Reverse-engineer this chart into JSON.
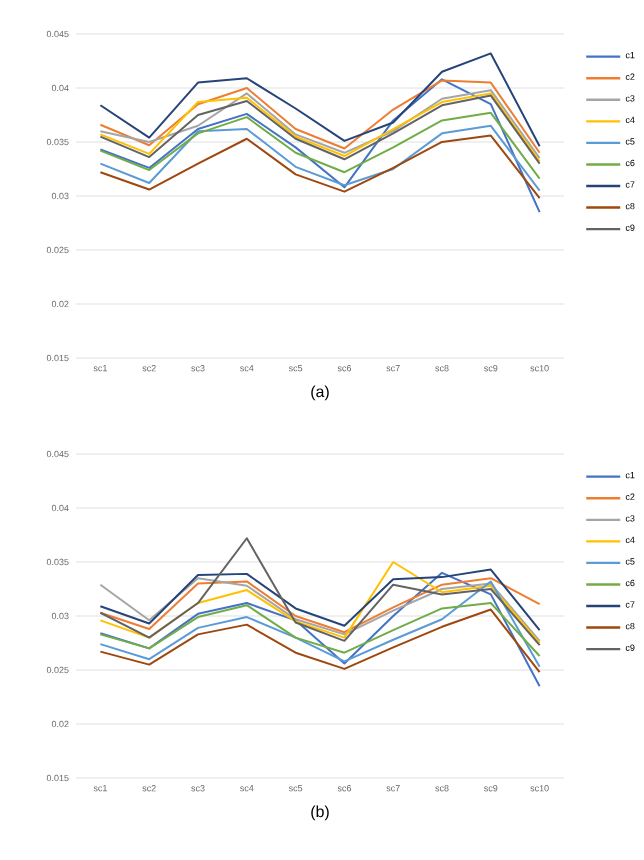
{
  "chart_data": [
    {
      "type": "line",
      "title": "(a)",
      "categories": [
        "sc1",
        "sc2",
        "sc3",
        "sc4",
        "sc5",
        "sc6",
        "sc7",
        "sc8",
        "sc9",
        "sc10"
      ],
      "ylim": [
        0.015,
        0.045
      ],
      "yticks": [
        0.015,
        0.02,
        0.025,
        0.03,
        0.035,
        0.04,
        0.045
      ],
      "grid": "y",
      "legend": "right",
      "marker": "none",
      "line_style": "solid",
      "series": [
        {
          "name": "c1",
          "color": "#4472c4",
          "values": [
            0.0343,
            0.0326,
            0.0362,
            0.0376,
            0.0345,
            0.0308,
            0.037,
            0.0408,
            0.0385,
            0.0285
          ]
        },
        {
          "name": "c2",
          "color": "#ed7d31",
          "values": [
            0.0366,
            0.0347,
            0.0385,
            0.04,
            0.0362,
            0.0344,
            0.038,
            0.0407,
            0.0405,
            0.034
          ]
        },
        {
          "name": "c3",
          "color": "#a5a5a5",
          "values": [
            0.036,
            0.035,
            0.0365,
            0.0395,
            0.0357,
            0.034,
            0.036,
            0.039,
            0.0398,
            0.0335
          ]
        },
        {
          "name": "c4",
          "color": "#ffc000",
          "values": [
            0.0357,
            0.0339,
            0.0387,
            0.0391,
            0.0355,
            0.0337,
            0.0362,
            0.0387,
            0.0395,
            0.0332
          ]
        },
        {
          "name": "c5",
          "color": "#5b9bd5",
          "values": [
            0.033,
            0.0312,
            0.036,
            0.0362,
            0.0327,
            0.031,
            0.0325,
            0.0358,
            0.0365,
            0.0305
          ]
        },
        {
          "name": "c6",
          "color": "#70ad47",
          "values": [
            0.0342,
            0.0324,
            0.0358,
            0.0373,
            0.034,
            0.0322,
            0.0345,
            0.037,
            0.0377,
            0.0316
          ]
        },
        {
          "name": "c7",
          "color": "#264478",
          "values": [
            0.0384,
            0.0354,
            0.0405,
            0.0409,
            0.0381,
            0.0351,
            0.0368,
            0.0415,
            0.0432,
            0.0346
          ]
        },
        {
          "name": "c8",
          "color": "#9e480e",
          "values": [
            0.0322,
            0.0306,
            0.033,
            0.0353,
            0.032,
            0.0304,
            0.0326,
            0.035,
            0.0356,
            0.0298
          ]
        },
        {
          "name": "c9",
          "color": "#636363",
          "values": [
            0.0355,
            0.0336,
            0.0375,
            0.0388,
            0.0353,
            0.0334,
            0.0358,
            0.0384,
            0.0393,
            0.033
          ]
        }
      ]
    },
    {
      "type": "line",
      "title": "(b)",
      "categories": [
        "sc1",
        "sc2",
        "sc3",
        "sc4",
        "sc5",
        "sc6",
        "sc7",
        "sc8",
        "sc9",
        "sc10"
      ],
      "ylim": [
        0.015,
        0.045
      ],
      "yticks": [
        0.015,
        0.02,
        0.025,
        0.03,
        0.035,
        0.04,
        0.045
      ],
      "grid": "y",
      "legend": "right",
      "marker": "none",
      "line_style": "solid",
      "series": [
        {
          "name": "c1",
          "color": "#4472c4",
          "values": [
            0.0284,
            0.027,
            0.0302,
            0.0312,
            0.0296,
            0.0256,
            0.03,
            0.034,
            0.032,
            0.0235
          ]
        },
        {
          "name": "c2",
          "color": "#ed7d31",
          "values": [
            0.0303,
            0.0288,
            0.033,
            0.0332,
            0.03,
            0.0285,
            0.0308,
            0.0329,
            0.0335,
            0.0311
          ]
        },
        {
          "name": "c3",
          "color": "#a5a5a5",
          "values": [
            0.0329,
            0.0296,
            0.0335,
            0.0328,
            0.0297,
            0.0283,
            0.0305,
            0.0325,
            0.033,
            0.0277
          ]
        },
        {
          "name": "c4",
          "color": "#ffc000",
          "values": [
            0.0296,
            0.028,
            0.0312,
            0.0324,
            0.0295,
            0.028,
            0.035,
            0.0322,
            0.0328,
            0.0275
          ]
        },
        {
          "name": "c5",
          "color": "#5b9bd5",
          "values": [
            0.0274,
            0.026,
            0.0289,
            0.0299,
            0.028,
            0.0258,
            0.0278,
            0.0297,
            0.0332,
            0.0253
          ]
        },
        {
          "name": "c6",
          "color": "#70ad47",
          "values": [
            0.0283,
            0.027,
            0.0299,
            0.031,
            0.028,
            0.0266,
            0.0287,
            0.0307,
            0.0312,
            0.0263
          ]
        },
        {
          "name": "c7",
          "color": "#264478",
          "values": [
            0.0309,
            0.0293,
            0.0338,
            0.0339,
            0.0307,
            0.0291,
            0.0334,
            0.0336,
            0.0343,
            0.0287
          ]
        },
        {
          "name": "c8",
          "color": "#9e480e",
          "values": [
            0.0267,
            0.0255,
            0.0283,
            0.0292,
            0.0266,
            0.0251,
            0.0271,
            0.029,
            0.0306,
            0.0248
          ]
        },
        {
          "name": "c9",
          "color": "#636363",
          "values": [
            0.0303,
            0.028,
            0.0312,
            0.0372,
            0.0294,
            0.0277,
            0.0329,
            0.032,
            0.0325,
            0.0273
          ]
        }
      ]
    }
  ]
}
